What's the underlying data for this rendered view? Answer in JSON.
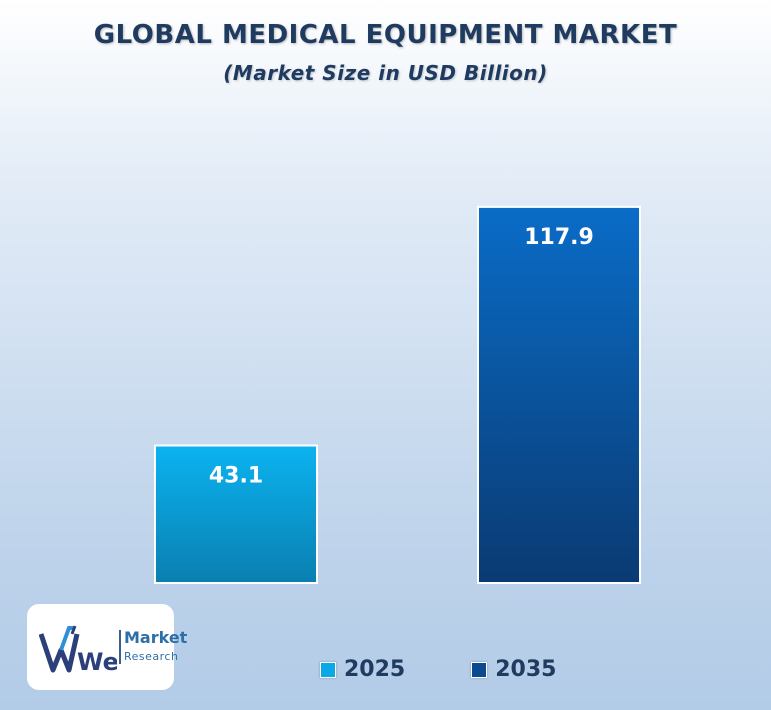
{
  "header": {
    "title": "GLOBAL MEDICAL EQUIPMENT MARKET",
    "subtitle": "(Market Size in USD Billion)"
  },
  "chart_data": {
    "type": "bar",
    "title": "GLOBAL MEDICAL EQUIPMENT MARKET",
    "subtitle": "(Market Size in USD Billion)",
    "categories": [
      "2025",
      "2035"
    ],
    "values": [
      43.1,
      117.9
    ],
    "value_labels": [
      "43.1",
      "117.9"
    ],
    "colors": [
      "#0aa8e6",
      "#0b4a8f"
    ],
    "grid": false,
    "legend_position": "bottom",
    "xlabel": "",
    "ylabel": ""
  },
  "legend": {
    "items": [
      {
        "label": "2025",
        "color": "#0aa8e6"
      },
      {
        "label": "2035",
        "color": "#0b4a8f"
      }
    ]
  },
  "logo": {
    "name": "Market",
    "sub": "Research",
    "mark": "We"
  }
}
